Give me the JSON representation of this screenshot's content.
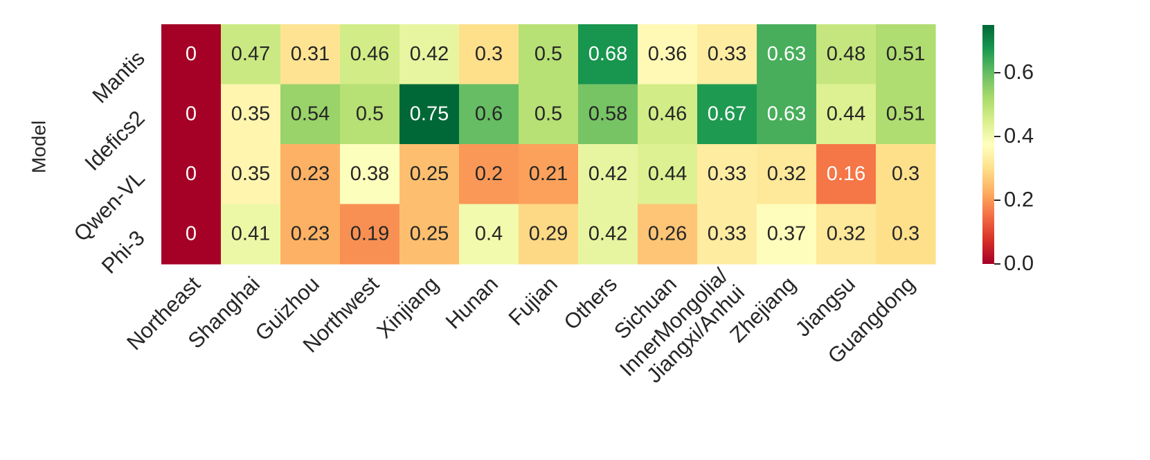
{
  "chart_data": {
    "type": "heatmap",
    "title": "",
    "xlabel": "",
    "ylabel": "Model",
    "rows": [
      "Mantis",
      "Idefics2",
      "Qwen-VL",
      "Phi-3"
    ],
    "columns": [
      "Northeast",
      "Shanghai",
      "Guizhou",
      "Northwest",
      "Xinjiang",
      "Hunan",
      "Fujian",
      "Others",
      "Sichuan",
      "InnerMongolia/\nJiangxi/Anhui",
      "Zhejiang",
      "Jiangsu",
      "Guangdong"
    ],
    "values": [
      [
        0,
        0.47,
        0.31,
        0.46,
        0.42,
        0.3,
        0.5,
        0.68,
        0.36,
        0.33,
        0.63,
        0.48,
        0.51
      ],
      [
        0,
        0.35,
        0.54,
        0.5,
        0.75,
        0.6,
        0.5,
        0.58,
        0.46,
        0.67,
        0.63,
        0.44,
        0.51
      ],
      [
        0,
        0.35,
        0.23,
        0.38,
        0.25,
        0.2,
        0.21,
        0.42,
        0.44,
        0.33,
        0.32,
        0.16,
        0.3
      ],
      [
        0,
        0.41,
        0.23,
        0.19,
        0.25,
        0.4,
        0.29,
        0.42,
        0.26,
        0.33,
        0.37,
        0.32,
        0.3
      ]
    ],
    "annotations": [
      [
        "0",
        "0.47",
        "0.31",
        "0.46",
        "0.42",
        "0.3",
        "0.5",
        "0.68",
        "0.36",
        "0.33",
        "0.63",
        "0.48",
        "0.51"
      ],
      [
        "0",
        "0.35",
        "0.54",
        "0.5",
        "0.75",
        "0.6",
        "0.5",
        "0.58",
        "0.46",
        "0.67",
        "0.63",
        "0.44",
        "0.51"
      ],
      [
        "0",
        "0.35",
        "0.23",
        "0.38",
        "0.25",
        "0.2",
        "0.21",
        "0.42",
        "0.44",
        "0.33",
        "0.32",
        "0.16",
        "0.3"
      ],
      [
        "0",
        "0.41",
        "0.23",
        "0.19",
        "0.25",
        "0.4",
        "0.29",
        "0.42",
        "0.26",
        "0.33",
        "0.37",
        "0.32",
        "0.3"
      ]
    ],
    "colormap": "RdYlGn",
    "vmin": 0,
    "vmax": 0.75,
    "colorbar": {
      "ticks": [
        0.0,
        0.2,
        0.4,
        0.6
      ],
      "tick_labels": [
        "0.0",
        "0.2",
        "0.4",
        "0.6"
      ]
    }
  }
}
